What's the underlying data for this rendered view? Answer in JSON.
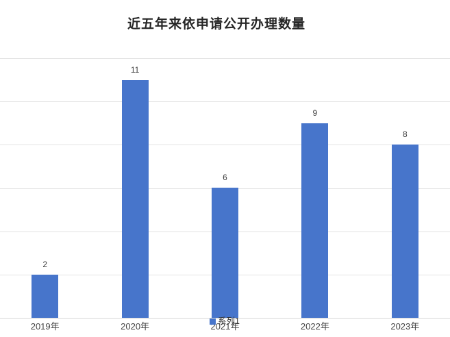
{
  "chart": {
    "title": "近五年来依申请公开办理数量",
    "legend_label": "系列1"
  },
  "chart_data": {
    "type": "bar",
    "title": "近五年来依申请公开办理数量",
    "categories": [
      "2019年",
      "2020年",
      "2021年",
      "2022年",
      "2023年"
    ],
    "series": [
      {
        "name": "系列1",
        "values": [
          2,
          11,
          6,
          9,
          8
        ]
      }
    ],
    "xlabel": "",
    "ylabel": "",
    "ylim": [
      0,
      12
    ],
    "gridline_step": 2,
    "grid": "horizontal",
    "y_tick_labels_visible": false,
    "data_labels": [
      2,
      11,
      6,
      9,
      8
    ],
    "legend_position": "bottom-center",
    "bar_color": "#4775CB",
    "gridline_color": "#e2e2e2",
    "axis_line_color": "#d5d5d5",
    "title_color": "#262626",
    "label_color": "#3f3f3f",
    "axis_label_color": "#444444"
  }
}
